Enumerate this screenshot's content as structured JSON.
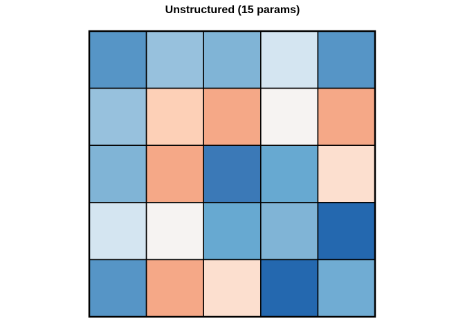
{
  "chart_data": {
    "type": "heatmap",
    "title": "Unstructured (15 params)",
    "xlabel": "",
    "ylabel": "",
    "grid": false,
    "legend": "none",
    "rows": 5,
    "cols": 5,
    "cells": [
      [
        "#5695c6",
        "#97c1dd",
        "#80b4d6",
        "#d4e5f1",
        "#5695c6"
      ],
      [
        "#97c1dd",
        "#fdd0b7",
        "#f5a887",
        "#f6f3f2",
        "#f5a887"
      ],
      [
        "#80b4d6",
        "#f5a887",
        "#3b79b7",
        "#67a9d1",
        "#fcdfcf"
      ],
      [
        "#d4e5f1",
        "#f6f3f2",
        "#67a9d1",
        "#80b4d6",
        "#2468af"
      ],
      [
        "#5695c6",
        "#f5a887",
        "#fcdfcf",
        "#2468af",
        "#70acd3"
      ]
    ],
    "cell_border_color": "#000000"
  }
}
